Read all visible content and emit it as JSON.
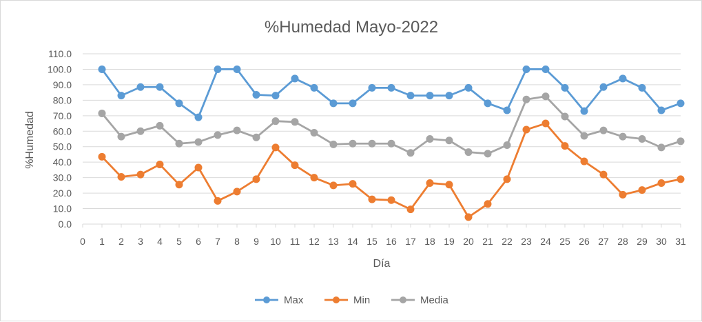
{
  "chart_data": {
    "type": "line",
    "title": "%Humedad Mayo-2022",
    "xlabel": "Día",
    "ylabel": "%Humedad",
    "xlim": [
      0,
      31
    ],
    "ylim": [
      0,
      110
    ],
    "ytick_step": 10,
    "grid": true,
    "legend_position": "bottom",
    "x_ticks": [
      0,
      1,
      2,
      3,
      4,
      5,
      6,
      7,
      8,
      9,
      10,
      11,
      12,
      13,
      14,
      15,
      16,
      17,
      18,
      19,
      20,
      21,
      22,
      23,
      24,
      25,
      26,
      27,
      28,
      29,
      30,
      31
    ],
    "y_ticks": [
      "0.0",
      "10.0",
      "20.0",
      "30.0",
      "40.0",
      "50.0",
      "60.0",
      "70.0",
      "80.0",
      "90.0",
      "100.0",
      "110.0"
    ],
    "x": [
      1,
      2,
      3,
      4,
      5,
      6,
      7,
      8,
      9,
      10,
      11,
      12,
      13,
      14,
      15,
      16,
      17,
      18,
      19,
      20,
      21,
      22,
      23,
      24,
      25,
      26,
      27,
      28,
      29,
      30,
      31
    ],
    "series": [
      {
        "name": "Max",
        "color": "#5b9bd5",
        "values": [
          100,
          83,
          88.5,
          88.5,
          78,
          69,
          100,
          100,
          83.5,
          83,
          94,
          88,
          78,
          78,
          88,
          88,
          83,
          83,
          83,
          88,
          78,
          73.5,
          100,
          100,
          88,
          73,
          88.5,
          94,
          88,
          73.5,
          78
        ]
      },
      {
        "name": "Min",
        "color": "#ed7d31",
        "values": [
          43.5,
          30.5,
          32,
          38.5,
          25.5,
          36.5,
          15,
          21,
          29,
          49.5,
          38,
          30,
          25,
          26,
          16,
          15.5,
          9.5,
          26.5,
          25.5,
          4.5,
          13,
          29,
          61,
          65,
          50.5,
          40.5,
          32,
          19,
          22,
          26.5,
          29
        ]
      },
      {
        "name": "Media",
        "color": "#a5a5a5",
        "values": [
          71.5,
          56.5,
          60,
          63.5,
          52,
          53,
          57.5,
          60.5,
          56,
          66.5,
          66,
          59,
          51.5,
          52,
          52,
          52,
          46,
          55,
          54,
          46.5,
          45.5,
          51,
          80.5,
          82.5,
          69.5,
          57,
          60.5,
          56.5,
          55,
          49.5,
          53.5
        ]
      }
    ]
  }
}
